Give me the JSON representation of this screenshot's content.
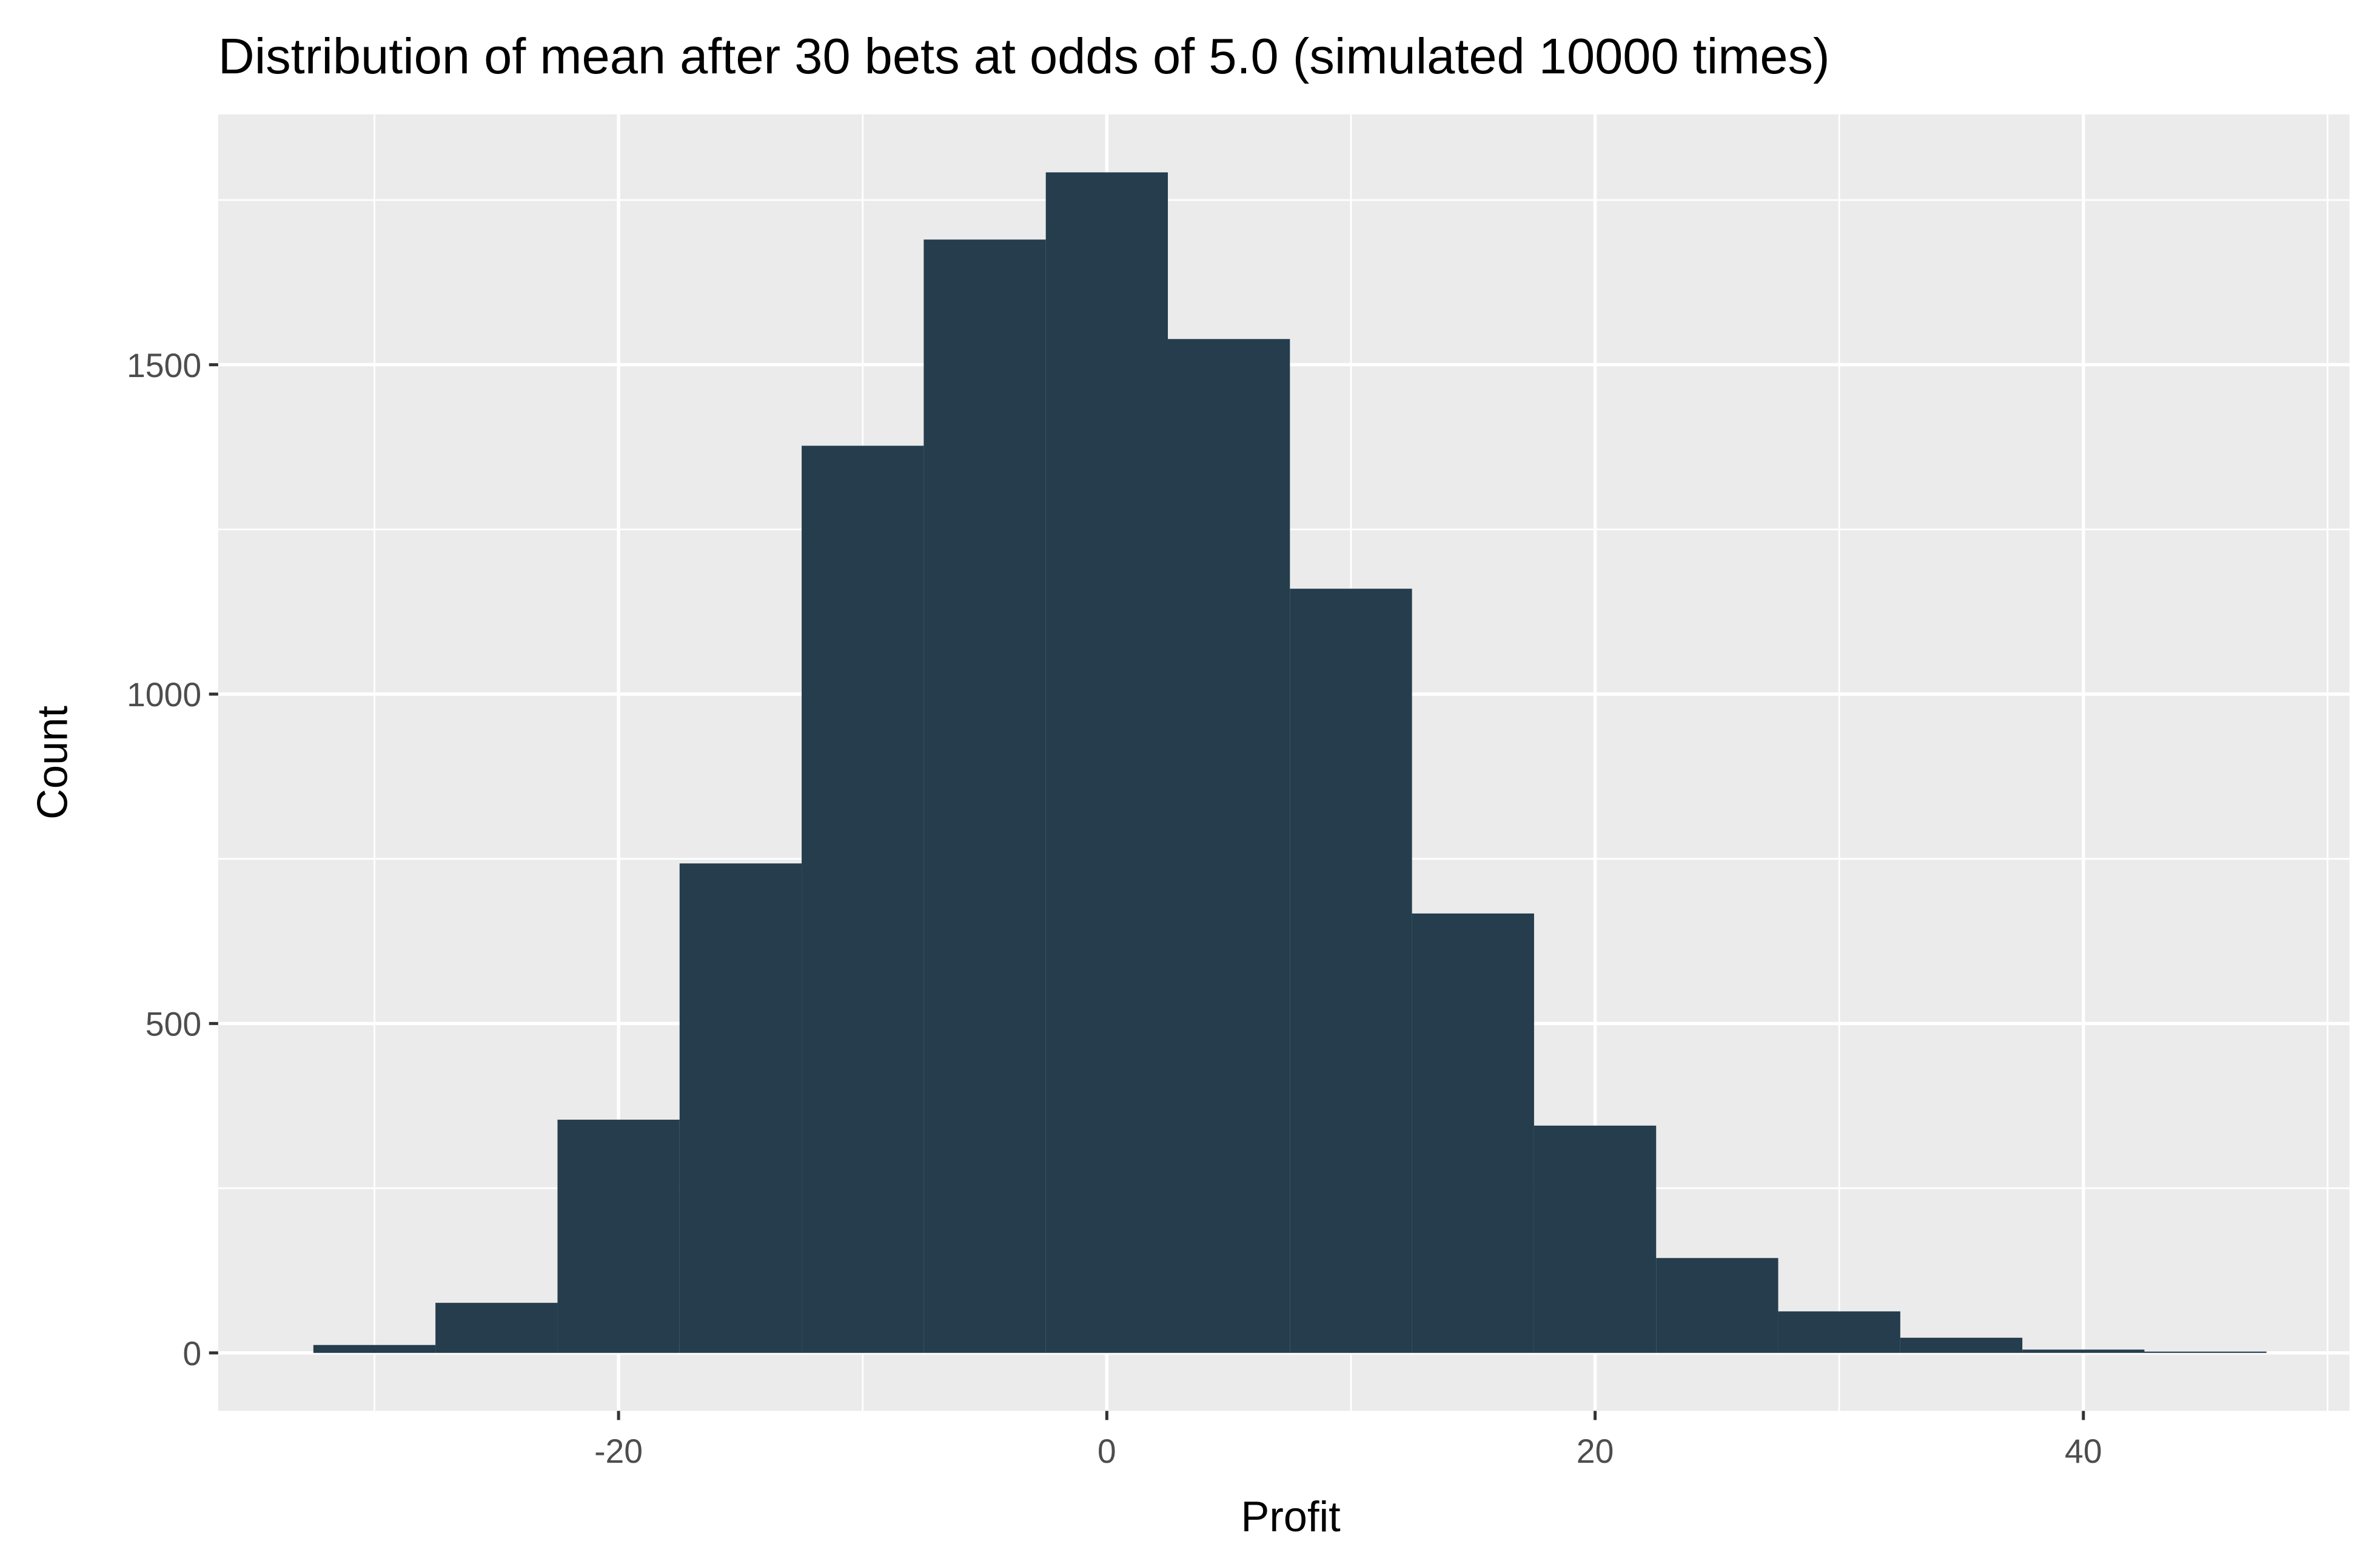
{
  "chart_data": {
    "type": "histogram",
    "title": "Distribution of mean after 30 bets at odds of 5.0 (simulated 10000 times)",
    "x_label": "Profit",
    "y_label": "Count",
    "bins": [
      -32.5,
      -27.5,
      -22.5,
      -17.5,
      -12.5,
      -7.5,
      -2.5,
      2.5,
      7.5,
      12.5,
      17.5,
      22.5,
      27.5,
      32.5,
      37.5,
      42.5,
      47.5
    ],
    "values": [
      12,
      76,
      354,
      743,
      1377,
      1690,
      1792,
      1539,
      1160,
      667,
      345,
      144,
      63,
      23,
      5,
      2
    ],
    "color": "#253d4d",
    "xlim": [
      -36.4,
      50.9
    ],
    "ylim": [
      -88,
      1880
    ],
    "xticks": [
      -20,
      0,
      20,
      40
    ],
    "yticks": [
      0,
      500,
      1000,
      1500
    ],
    "x_minor_ticks": [
      -30,
      -10,
      10,
      30,
      50
    ],
    "y_minor_ticks": [
      250,
      750,
      1250,
      1750
    ],
    "grid": true,
    "panel_color": "#ebebeb"
  }
}
